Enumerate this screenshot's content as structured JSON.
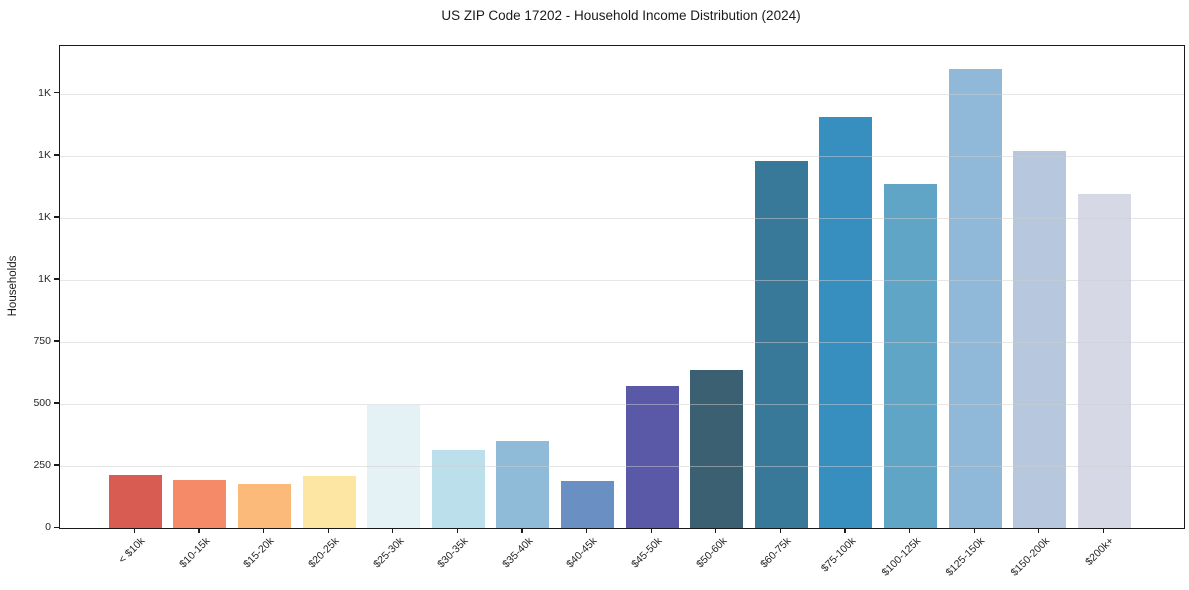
{
  "chart_data": {
    "type": "bar",
    "title": "US ZIP Code 17202 - Household Income Distribution (2024)",
    "xlabel": "",
    "ylabel": "Households",
    "categories": [
      "< $10k",
      "$10-15k",
      "$15-20k",
      "$20-25k",
      "$25-30k",
      "$30-35k",
      "$35-40k",
      "$40-45k",
      "$45-50k",
      "$50-60k",
      "$60-75k",
      "$75-100k",
      "$100-125k",
      "$125-150k",
      "$150-200k",
      "$200k+"
    ],
    "values": [
      215,
      195,
      178,
      210,
      495,
      315,
      350,
      190,
      572,
      636,
      1478,
      1655,
      1386,
      1849,
      1519,
      1347
    ],
    "bar_colors": [
      "#d95c52",
      "#f48a68",
      "#fbba79",
      "#fde5a4",
      "#e4f1f5",
      "#bcdfec",
      "#8fbad8",
      "#6a90c3",
      "#5a59a8",
      "#3a6072",
      "#38799a",
      "#378fc0",
      "#60a4c6",
      "#8fb8d9",
      "#b7c7dd",
      "#d6d8e6"
    ],
    "yticks": [
      {
        "value": 0,
        "label": "0"
      },
      {
        "value": 250,
        "label": "250"
      },
      {
        "value": 500,
        "label": "500"
      },
      {
        "value": 750,
        "label": "750"
      },
      {
        "value": 1000,
        "label": "1K"
      },
      {
        "value": 1250,
        "label": "1K"
      },
      {
        "value": 1500,
        "label": "1K"
      },
      {
        "value": 1750,
        "label": "1K"
      }
    ],
    "ylim": [
      0,
      1942
    ],
    "grid": "horizontal",
    "legend": "none",
    "background_color": "#ffffff",
    "axis_color": "#1a1a1a",
    "grid_color": "#e8e8e8"
  }
}
